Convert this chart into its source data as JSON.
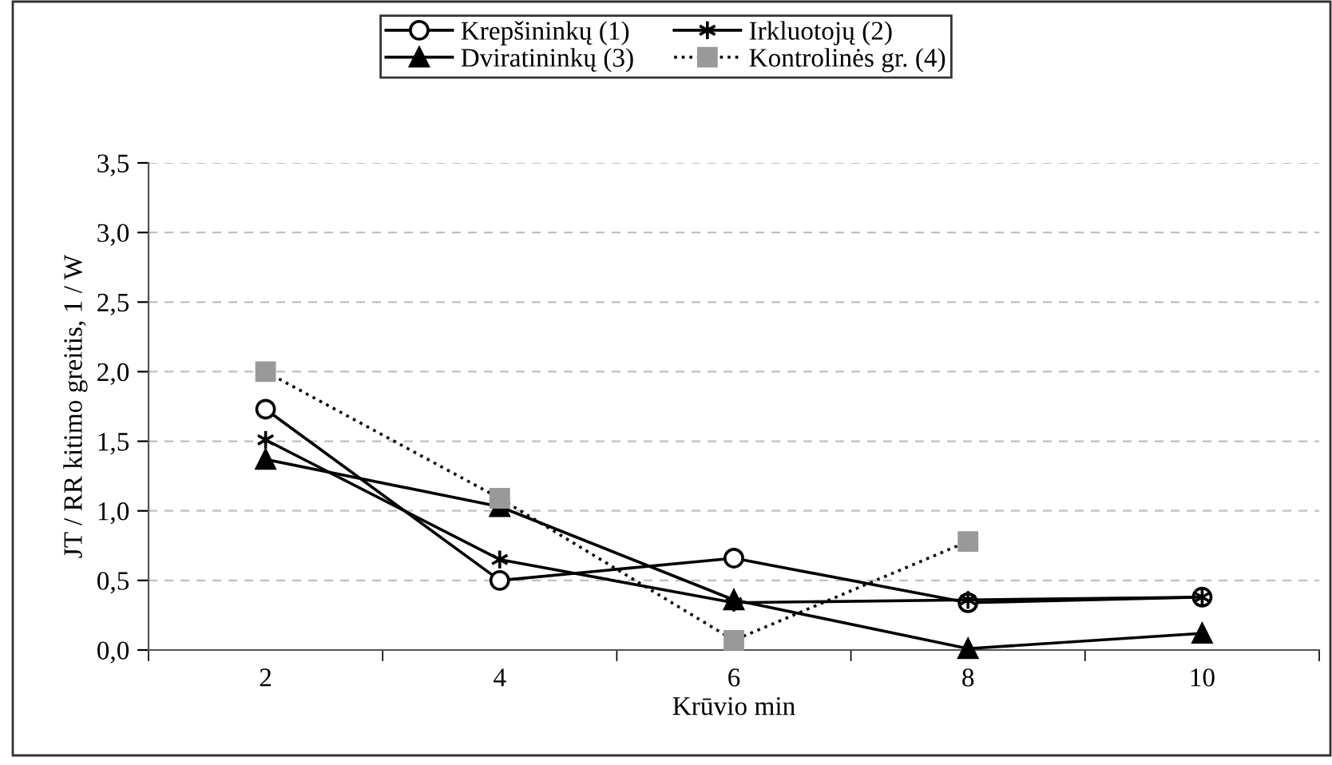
{
  "chart_data": {
    "type": "line",
    "xlabel": "Krūvio min",
    "ylabel": "JT / RR kitimo greitis, 1 / W",
    "categories": [
      "2",
      "4",
      "6",
      "8",
      "10"
    ],
    "series": [
      {
        "name": "Krepšininkų (1)",
        "color": "#000000",
        "marker": "circle",
        "line_style": "solid",
        "values": [
          1.73,
          0.5,
          0.66,
          0.34,
          0.38
        ]
      },
      {
        "name": "Irkluotojų (2)",
        "color": "#000000",
        "marker": "cross",
        "line_style": "solid",
        "values": [
          1.51,
          0.65,
          0.34,
          0.36,
          0.38
        ]
      },
      {
        "name": "Dviratininkų (3)",
        "color": "#000000",
        "marker": "triangle",
        "line_style": "solid",
        "values": [
          1.37,
          1.03,
          0.36,
          0.01,
          0.12
        ]
      },
      {
        "name": "Kontrolinės gr. (4)",
        "color": "#999999",
        "marker": "square",
        "line_style": "dotted",
        "values": [
          2.0,
          1.09,
          0.07,
          0.78,
          null
        ]
      }
    ],
    "ylim": [
      0,
      3.5
    ],
    "yticks": [
      {
        "value": 0,
        "label": "0,0"
      },
      {
        "value": 0.5,
        "label": "0,5"
      },
      {
        "value": 1,
        "label": "1,0"
      },
      {
        "value": 1.5,
        "label": "1,5"
      },
      {
        "value": 2,
        "label": "2,0"
      },
      {
        "value": 2.5,
        "label": "2,5"
      },
      {
        "value": 3,
        "label": "3,0"
      },
      {
        "value": 3.5,
        "label": "3,5"
      }
    ],
    "grid": "y",
    "legend": "top"
  }
}
